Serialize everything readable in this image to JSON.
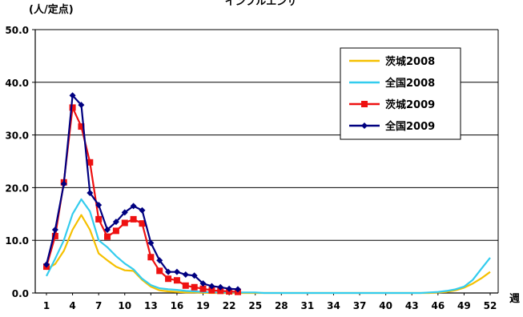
{
  "chart_data": {
    "type": "line",
    "title": "インフルエンザ",
    "ylabel": "(人/定点)",
    "xlabel": "週",
    "ylim": [
      0,
      50
    ],
    "yticks": [
      "0.0",
      "10.0",
      "20.0",
      "30.0",
      "40.0",
      "50.0"
    ],
    "xlim": [
      1,
      52
    ],
    "xticks": [
      1,
      4,
      7,
      10,
      13,
      16,
      19,
      22,
      25,
      28,
      31,
      34,
      37,
      40,
      43,
      46,
      49,
      52
    ],
    "grid": true,
    "legend_position": "top-right",
    "series": [
      {
        "name": "茨城2008",
        "color": "#f5c000",
        "marker": "none",
        "x": [
          1,
          2,
          3,
          4,
          5,
          6,
          7,
          8,
          9,
          10,
          11,
          12,
          13,
          14,
          15,
          16,
          17,
          18,
          19,
          20,
          21,
          22,
          23,
          24,
          25,
          26,
          27,
          28,
          29,
          30,
          31,
          32,
          33,
          34,
          35,
          36,
          37,
          38,
          39,
          40,
          41,
          42,
          43,
          44,
          45,
          46,
          47,
          48,
          49,
          50,
          51,
          52
        ],
        "values": [
          4.5,
          5.5,
          8,
          12,
          14.8,
          12,
          7.5,
          6.2,
          5,
          4.3,
          4.2,
          2.5,
          1.2,
          0.5,
          0.3,
          0.2,
          0.1,
          0.1,
          0.05,
          0,
          0,
          0,
          0,
          0,
          0,
          0,
          0,
          0,
          0,
          0,
          0,
          0,
          0,
          0,
          0,
          0,
          0,
          0,
          0,
          0,
          0,
          0,
          0,
          0,
          0,
          0.1,
          0.2,
          0.5,
          1,
          1.8,
          2.8,
          4
        ]
      },
      {
        "name": "全国2008",
        "color": "#33ccee",
        "marker": "none",
        "x": [
          1,
          2,
          3,
          4,
          5,
          6,
          7,
          8,
          9,
          10,
          11,
          12,
          13,
          14,
          15,
          16,
          17,
          18,
          19,
          20,
          21,
          22,
          23,
          24,
          25,
          26,
          27,
          28,
          29,
          30,
          31,
          32,
          33,
          34,
          35,
          36,
          37,
          38,
          39,
          40,
          41,
          42,
          43,
          44,
          45,
          46,
          47,
          48,
          49,
          50,
          51,
          52
        ],
        "values": [
          3.2,
          6.5,
          10,
          15,
          17.8,
          15.5,
          10,
          8.7,
          7,
          5.6,
          4.5,
          2.7,
          1.5,
          0.9,
          0.7,
          0.6,
          0.4,
          0.3,
          0.2,
          0.1,
          0.1,
          0.1,
          0.1,
          0.1,
          0.1,
          0,
          0,
          0,
          0,
          0,
          0,
          0,
          0,
          0,
          0,
          0,
          0,
          0,
          0,
          0,
          0,
          0,
          0,
          0,
          0.1,
          0.2,
          0.4,
          0.7,
          1.2,
          2.5,
          4.6,
          6.7
        ]
      },
      {
        "name": "茨城2009",
        "color": "#ee1111",
        "marker": "square",
        "x": [
          1,
          2,
          3,
          4,
          5,
          6,
          7,
          8,
          9,
          10,
          11,
          12,
          13,
          14,
          15,
          16,
          17,
          18,
          19,
          20,
          21,
          22,
          23
        ],
        "values": [
          5,
          10.8,
          21,
          35.2,
          31.6,
          24.8,
          14,
          10.7,
          11.8,
          13.3,
          14,
          13.2,
          6.8,
          4.2,
          2.7,
          2.4,
          1.4,
          1.1,
          0.8,
          0.5,
          0.4,
          0.3,
          0.2
        ]
      },
      {
        "name": "全国2009",
        "color": "#000080",
        "marker": "diamond",
        "x": [
          1,
          2,
          3,
          4,
          5,
          6,
          7,
          8,
          9,
          10,
          11,
          12,
          13,
          14,
          15,
          16,
          17,
          18,
          19,
          20,
          21,
          22,
          23
        ],
        "values": [
          5.4,
          12,
          20.7,
          37.5,
          35.7,
          19,
          16.7,
          12,
          13.5,
          15.3,
          16.5,
          15.7,
          9.5,
          6.2,
          4,
          4,
          3.5,
          3.3,
          1.8,
          1.3,
          1.1,
          0.8,
          0.7
        ]
      }
    ]
  }
}
